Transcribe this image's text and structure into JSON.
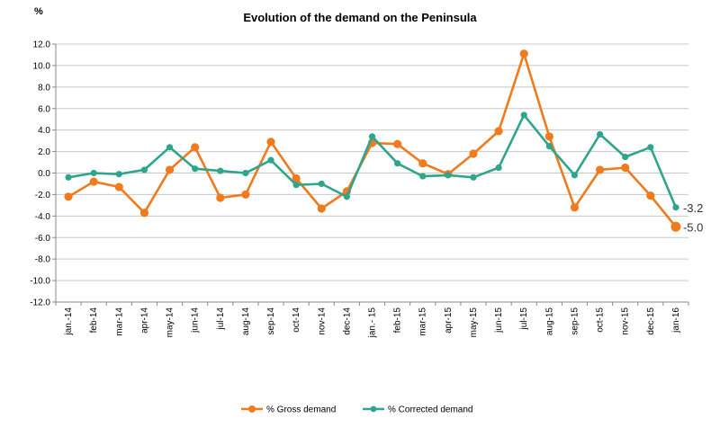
{
  "chart_data": {
    "type": "line",
    "title": "Evolution of the demand on the Peninsula",
    "unit": "%",
    "ylim": [
      -12,
      12
    ],
    "yticks": [
      "12.0",
      "10.0",
      "8.0",
      "6.0",
      "4.0",
      "2.0",
      "0.0",
      "-2.0",
      "-4.0",
      "-6.0",
      "-8.0",
      "-10.0",
      "-12.0"
    ],
    "categories": [
      "jan.-14",
      "feb-14",
      "mar-14",
      "apr-14",
      "may-14",
      "jun-14",
      "jul-14",
      "aug-14",
      "sep-14",
      "oct-14",
      "nov-14",
      "dec-14",
      "jan.- 15",
      "feb-15",
      "mar-15",
      "apr-15",
      "may-15",
      "jun-15",
      "jul-15",
      "aug-15",
      "sep-15",
      "oct-15",
      "nov-15",
      "dec-15",
      "jan-16"
    ],
    "grid": "horizontal",
    "legend_position": "bottom",
    "series": [
      {
        "name": "% Gross demand",
        "color": "#F07A1E",
        "values": [
          -2.2,
          -0.8,
          -1.3,
          -3.7,
          0.3,
          2.4,
          -2.3,
          -2.0,
          2.9,
          -0.5,
          -3.3,
          -1.7,
          2.8,
          2.7,
          0.9,
          -0.1,
          1.8,
          3.9,
          11.1,
          3.4,
          -3.2,
          0.3,
          0.5,
          -2.1,
          -5.0
        ],
        "end_label": "-5.0"
      },
      {
        "name": "% Corrected demand",
        "color": "#2EA58C",
        "values": [
          -0.4,
          0.0,
          -0.1,
          0.3,
          2.4,
          0.4,
          0.2,
          0.0,
          1.2,
          -1.1,
          -1.0,
          -2.2,
          3.4,
          0.9,
          -0.3,
          -0.2,
          -0.4,
          0.5,
          5.4,
          2.5,
          -0.2,
          3.6,
          1.5,
          2.4,
          -3.2
        ],
        "end_label": "-3.2"
      }
    ]
  }
}
